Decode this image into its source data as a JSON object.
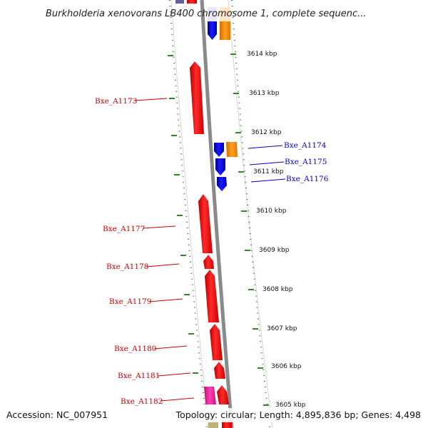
{
  "title": "Burkholderia xenovorans LB400 chromosome 1, complete sequenc...",
  "accession": "Accession: NC_007951",
  "topology": "Topology: circular; Length: 4,895,836 bp; Genes: 4,498",
  "colors": {
    "forward": "#ff0000",
    "reverse": "#0000ff",
    "other": "#ff8c00",
    "pink": "#ff1493",
    "backbone": "#888888",
    "ticks": "#2e8b22"
  },
  "scale": {
    "labels": [
      "3614 kbp",
      "3613 kbp",
      "3612 kbp",
      "3611 kbp",
      "3610 kbp",
      "3609 kbp",
      "3608 kbp",
      "3607 kbp",
      "3606 kbp",
      "3605 kbp"
    ]
  },
  "genes": [
    {
      "id": "g1",
      "label": "Bxe_A1173",
      "strand": "forward"
    },
    {
      "id": "g2",
      "label": "Bxe_A1174",
      "strand": "reverse"
    },
    {
      "id": "g3",
      "label": "Bxe_A1175",
      "strand": "reverse"
    },
    {
      "id": "g4",
      "label": "Bxe_A1176",
      "strand": "reverse"
    },
    {
      "id": "g5",
      "label": "Bxe_A1177",
      "strand": "forward"
    },
    {
      "id": "g6",
      "label": "Bxe_A1178",
      "strand": "forward"
    },
    {
      "id": "g7",
      "label": "Bxe_A1179",
      "strand": "forward"
    },
    {
      "id": "g8",
      "label": "Bxe_A1180",
      "strand": "forward"
    },
    {
      "id": "g9",
      "label": "Bxe_A1181",
      "strand": "forward"
    },
    {
      "id": "g10",
      "label": "Bxe_A1182",
      "strand": "forward"
    }
  ]
}
